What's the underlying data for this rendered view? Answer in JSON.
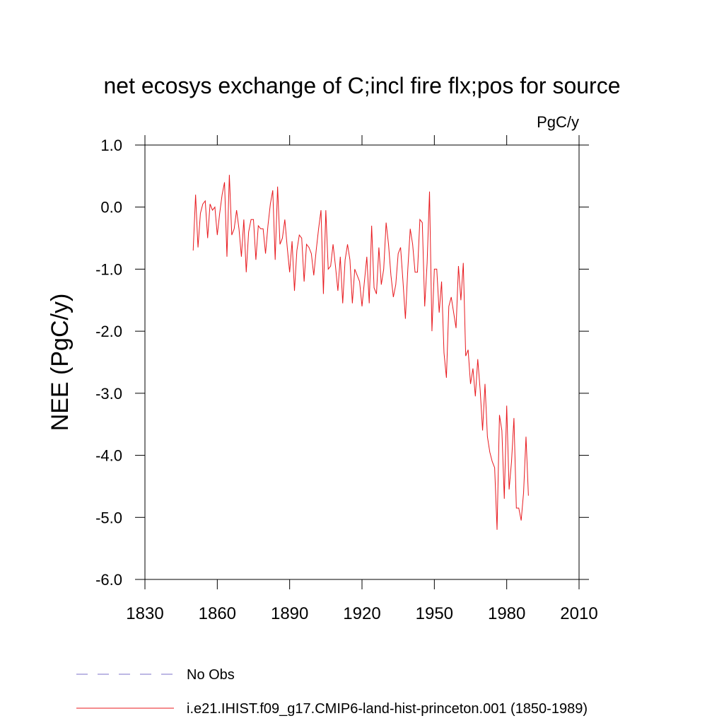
{
  "chart_data": {
    "type": "line",
    "title": "net ecosys exchange of C;incl fire flx;pos for source",
    "units": "PgC/y",
    "y_label": "NEE  (PgC/y)",
    "x": [
      1850,
      1851,
      1852,
      1853,
      1854,
      1855,
      1856,
      1857,
      1858,
      1859,
      1860,
      1861,
      1862,
      1863,
      1864,
      1865,
      1866,
      1867,
      1868,
      1869,
      1870,
      1871,
      1872,
      1873,
      1874,
      1875,
      1876,
      1877,
      1878,
      1879,
      1880,
      1881,
      1882,
      1883,
      1884,
      1885,
      1886,
      1887,
      1888,
      1889,
      1890,
      1891,
      1892,
      1893,
      1894,
      1895,
      1896,
      1897,
      1898,
      1899,
      1900,
      1901,
      1902,
      1903,
      1904,
      1905,
      1906,
      1907,
      1908,
      1909,
      1910,
      1911,
      1912,
      1913,
      1914,
      1915,
      1916,
      1917,
      1918,
      1919,
      1920,
      1921,
      1922,
      1923,
      1924,
      1925,
      1926,
      1927,
      1928,
      1929,
      1930,
      1931,
      1932,
      1933,
      1934,
      1935,
      1936,
      1937,
      1938,
      1939,
      1940,
      1941,
      1942,
      1943,
      1944,
      1945,
      1946,
      1947,
      1948,
      1949,
      1950,
      1951,
      1952,
      1953,
      1954,
      1955,
      1956,
      1957,
      1958,
      1959,
      1960,
      1961,
      1962,
      1963,
      1964,
      1965,
      1966,
      1967,
      1968,
      1969,
      1970,
      1971,
      1972,
      1973,
      1974,
      1975,
      1976,
      1977,
      1978,
      1979,
      1980,
      1981,
      1982,
      1983,
      1984,
      1985,
      1986,
      1987,
      1988,
      1989
    ],
    "series": [
      {
        "name": "i.e21.IHIST.f09_g17.CMIP6-land-hist-princeton.001 (1850-1989)",
        "color": "#e8191e",
        "values": [
          -0.7,
          0.2,
          -0.65,
          -0.1,
          0.05,
          0.1,
          -0.5,
          0.05,
          -0.05,
          0.0,
          -0.45,
          -0.1,
          0.2,
          0.4,
          -0.8,
          0.52,
          -0.45,
          -0.35,
          -0.05,
          -0.35,
          -0.8,
          -0.2,
          -1.05,
          -0.4,
          -0.2,
          -0.2,
          -0.85,
          -0.3,
          -0.35,
          -0.35,
          -0.75,
          -0.3,
          0.05,
          0.27,
          -0.85,
          0.33,
          -0.6,
          -0.5,
          -0.2,
          -0.65,
          -1.05,
          -0.55,
          -1.35,
          -0.7,
          -0.45,
          -0.5,
          -1.2,
          -0.6,
          -0.65,
          -0.75,
          -1.1,
          -0.7,
          -0.35,
          -0.05,
          -1.4,
          -0.05,
          -1.0,
          -0.95,
          -0.6,
          -0.95,
          -1.35,
          -0.8,
          -1.55,
          -0.85,
          -0.6,
          -0.85,
          -1.55,
          -1.0,
          -1.1,
          -1.2,
          -1.6,
          -1.2,
          -0.8,
          -1.55,
          -0.3,
          -1.3,
          -1.4,
          -0.65,
          -1.25,
          -1.0,
          -0.25,
          -0.6,
          -1.1,
          -1.45,
          -1.25,
          -0.75,
          -0.65,
          -1.2,
          -1.8,
          -1.0,
          -0.35,
          -0.6,
          -1.05,
          -1.05,
          -0.2,
          -0.25,
          -1.6,
          -0.9,
          0.25,
          -2.0,
          -1.0,
          -1.0,
          -1.7,
          -1.2,
          -2.35,
          -2.75,
          -1.6,
          -1.45,
          -1.7,
          -1.95,
          -0.95,
          -1.5,
          -0.9,
          -2.4,
          -2.3,
          -2.85,
          -2.6,
          -3.05,
          -2.45,
          -2.95,
          -3.6,
          -2.85,
          -3.7,
          -3.95,
          -4.1,
          -4.2,
          -5.2,
          -3.35,
          -3.6,
          -4.7,
          -3.2,
          -4.55,
          -4.1,
          -3.4,
          -4.85,
          -4.85,
          -5.05,
          -4.6,
          -3.7,
          -4.65
        ]
      }
    ],
    "legend_extra": {
      "name": "No Obs",
      "color": "#7b72c8"
    },
    "xlim": [
      1830,
      2010
    ],
    "xticks": [
      1830,
      1860,
      1890,
      1920,
      1950,
      1980,
      2010
    ],
    "ylim": [
      -6.0,
      1.0
    ],
    "yticks": [
      {
        "value": -6,
        "label": "-6.0"
      },
      {
        "value": -5,
        "label": "-5.0"
      },
      {
        "value": -4,
        "label": "-4.0"
      },
      {
        "value": -3,
        "label": "-3.0"
      },
      {
        "value": -2,
        "label": "-2.0"
      },
      {
        "value": -1,
        "label": "-1.0"
      },
      {
        "value": 0,
        "label": "0.0"
      },
      {
        "value": 1,
        "label": "1.0"
      }
    ]
  }
}
